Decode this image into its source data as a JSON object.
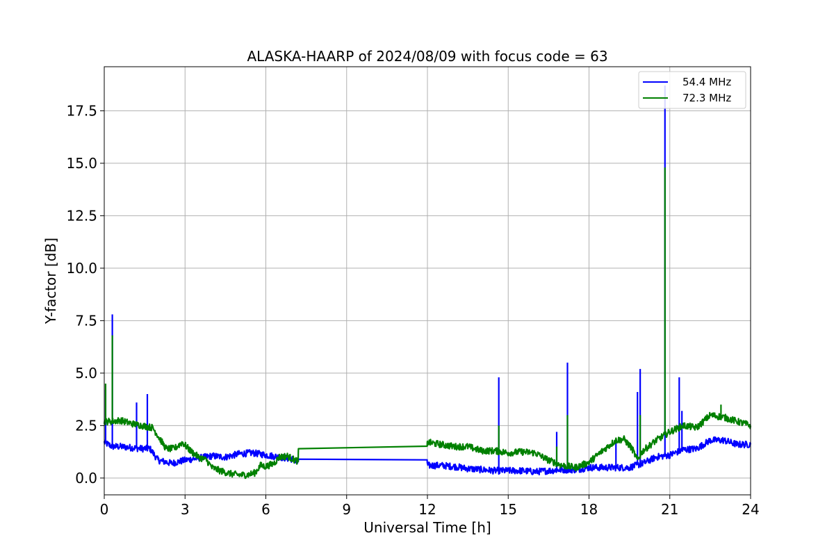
{
  "chart_data": {
    "type": "line",
    "title": "ALASKA-HAARP of 2024/08/09 with focus code = 63",
    "xlabel": "Universal Time [h]",
    "ylabel": "Y-factor [dB]",
    "xlim": [
      0,
      24
    ],
    "ylim": [
      -0.8,
      19.6
    ],
    "xticks": [
      0,
      3,
      6,
      9,
      12,
      15,
      18,
      21,
      24
    ],
    "yticks": [
      0.0,
      2.5,
      5.0,
      7.5,
      10.0,
      12.5,
      15.0,
      17.5
    ],
    "xtick_labels": [
      "0",
      "3",
      "6",
      "9",
      "12",
      "15",
      "18",
      "21",
      "24"
    ],
    "ytick_labels": [
      "0.0",
      "2.5",
      "5.0",
      "7.5",
      "10.0",
      "12.5",
      "15.0",
      "17.5"
    ],
    "grid": true,
    "legend_position": "top-right",
    "series": [
      {
        "name": "54.4 MHz",
        "color": "#0000ff",
        "x": [
          0,
          0.3,
          0.6,
          1.0,
          1.4,
          1.7,
          2.0,
          2.5,
          3.0,
          3.5,
          4.0,
          4.5,
          5.0,
          5.5,
          6.0,
          6.5,
          7.0,
          7.2,
          7.21,
          11.99,
          12.0,
          12.5,
          13.0,
          13.5,
          14.0,
          14.5,
          15.0,
          15.5,
          16.0,
          16.5,
          17.0,
          17.5,
          18.0,
          18.5,
          19.0,
          19.5,
          20.0,
          20.5,
          21.0,
          21.5,
          22.0,
          22.5,
          23.0,
          23.5,
          24.0
        ],
        "y": [
          1.7,
          1.5,
          1.5,
          1.45,
          1.4,
          1.4,
          0.85,
          0.7,
          0.85,
          0.95,
          1.05,
          1.0,
          1.15,
          1.2,
          1.1,
          1.0,
          0.9,
          0.7,
          0.9,
          0.9,
          0.6,
          0.6,
          0.55,
          0.45,
          0.4,
          0.35,
          0.35,
          0.35,
          0.3,
          0.35,
          0.4,
          0.4,
          0.5,
          0.5,
          0.5,
          0.5,
          0.7,
          1.0,
          1.1,
          1.35,
          1.4,
          1.8,
          1.8,
          1.6,
          1.6
        ],
        "spikes": [
          [
            0.3,
            7.8
          ],
          [
            0.05,
            4.2
          ],
          [
            1.2,
            3.6
          ],
          [
            1.6,
            4.0
          ],
          [
            14.65,
            4.8
          ],
          [
            16.8,
            2.2
          ],
          [
            17.2,
            5.5
          ],
          [
            19.0,
            1.8
          ],
          [
            19.8,
            4.1
          ],
          [
            19.9,
            5.2
          ],
          [
            20.82,
            18.7
          ],
          [
            21.35,
            4.8
          ],
          [
            21.45,
            3.2
          ]
        ]
      },
      {
        "name": "72.3 MHz",
        "color": "#008000",
        "x": [
          0,
          0.3,
          0.6,
          1.0,
          1.4,
          1.8,
          2.0,
          2.3,
          2.6,
          2.9,
          3.2,
          3.5,
          3.8,
          4.0,
          4.3,
          4.7,
          5.0,
          5.3,
          5.6,
          5.8,
          6.0,
          6.3,
          6.5,
          6.8,
          7.0,
          7.2,
          7.21,
          11.99,
          12.0,
          12.5,
          13.0,
          13.5,
          14.0,
          14.5,
          15.0,
          15.5,
          16.0,
          16.5,
          17.0,
          17.5,
          18.0,
          18.5,
          19.0,
          19.3,
          19.6,
          19.8,
          20.0,
          20.5,
          21.0,
          21.5,
          22.0,
          22.5,
          23.0,
          23.5,
          24.0
        ],
        "y": [
          2.7,
          2.7,
          2.75,
          2.6,
          2.5,
          2.4,
          2.0,
          1.4,
          1.4,
          1.7,
          1.3,
          1.0,
          0.85,
          0.5,
          0.35,
          0.2,
          0.15,
          0.15,
          0.25,
          0.6,
          0.55,
          0.7,
          1.0,
          1.05,
          0.9,
          0.8,
          1.4,
          1.45,
          1.7,
          1.6,
          1.5,
          1.5,
          1.3,
          1.3,
          1.2,
          1.25,
          1.2,
          0.85,
          0.6,
          0.5,
          0.75,
          1.3,
          1.8,
          1.85,
          1.4,
          0.85,
          1.3,
          1.8,
          2.2,
          2.5,
          2.4,
          3.0,
          2.9,
          2.7,
          2.5
        ],
        "spikes": [
          [
            0.3,
            6.8
          ],
          [
            0.05,
            4.5
          ],
          [
            14.65,
            2.5
          ],
          [
            16.8,
            1.5
          ],
          [
            17.2,
            3.0
          ],
          [
            19.9,
            3.0
          ],
          [
            20.82,
            14.8
          ],
          [
            22.9,
            3.5
          ]
        ]
      }
    ]
  }
}
